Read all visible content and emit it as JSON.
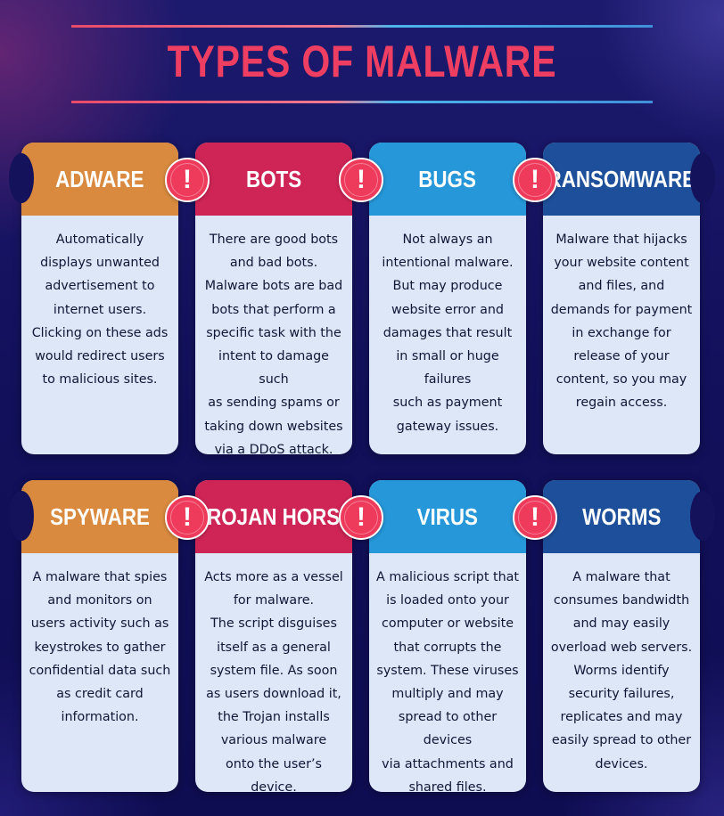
{
  "title": "TYPES OF MALWARE",
  "colors": {
    "title": "#ee3f63",
    "badge": "#ee3a5b",
    "card_body": "#dde7f8",
    "background": "#14125a"
  },
  "badge_icon": "exclamation-icon",
  "badge_glyph": "!",
  "cards": [
    {
      "title": "ADWARE",
      "color": "#d98a3e",
      "text": "Automatically\ndisplays unwanted\nadvertisement to\ninternet users.\nClicking on these ads\nwould redirect users\nto malicious sites."
    },
    {
      "title": "BOTS",
      "color": "#cf2556",
      "text": "There are good bots\nand bad bots.\nMalware bots are bad\nbots that perform a\nspecific task with the\nintent to damage such\nas sending spams or\ntaking down websites\nvia a DDoS attack."
    },
    {
      "title": "BUGS",
      "color": "#2697d8",
      "text": "Not always an\nintentional malware.\nBut may produce\nwebsite error and\ndamages that result\nin small or huge failures\nsuch as payment\ngateway issues."
    },
    {
      "title": "RANSOMWARE",
      "color": "#1e4f9a",
      "text": "Malware that hijacks\nyour website content\nand files, and\ndemands for payment\nin exchange for\nrelease of your\ncontent, so you may\nregain access."
    },
    {
      "title": "SPYWARE",
      "color": "#d98a3e",
      "text": "A malware that spies\nand monitors on\nusers activity such as\nkeystrokes to gather\nconfidential data such\nas credit card\ninformation."
    },
    {
      "title": "TROJAN HORSE",
      "color": "#cf2556",
      "text": "Acts more as a vessel\nfor malware.\nThe script disguises\nitself as a general\nsystem file. As soon\nas users download it,\nthe Trojan installs\nvarious malware\nonto the user’s device."
    },
    {
      "title": "VIRUS",
      "color": "#2697d8",
      "text": "A malicious script that\nis loaded onto your\ncomputer or website\nthat corrupts the\nsystem. These viruses\nmultiply and may\nspread to other devices\nvia attachments and\nshared files."
    },
    {
      "title": "WORMS",
      "color": "#1e4f9a",
      "text": "A malware that\nconsumes bandwidth\nand may easily\noverload web servers.\nWorms identify\nsecurity failures,\nreplicates and may\neasily spread to other\ndevices."
    }
  ]
}
